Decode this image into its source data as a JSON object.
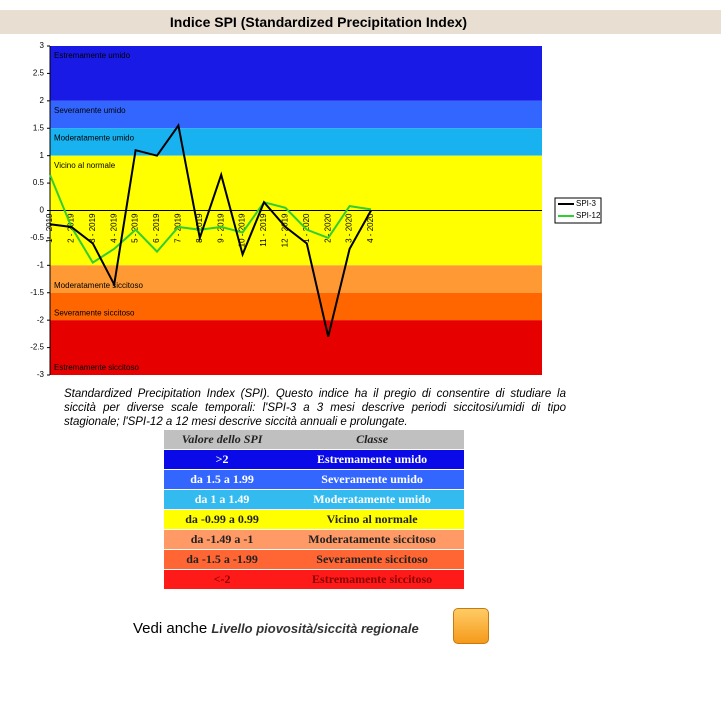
{
  "header": {
    "title": "Indice SPI (Standardized Precipitation Index)"
  },
  "chart_data": {
    "type": "line",
    "categories": [
      "1 - 2019",
      "2 - 2019",
      "3 - 2019",
      "4 - 2019",
      "5 - 2019",
      "6 - 2019",
      "7 - 2019",
      "8 - 2019",
      "9 - 2019",
      "10 - 2019",
      "11 - 2019",
      "12 - 2019",
      "1 - 2020",
      "2 - 2020",
      "3 - 2020",
      "4 - 2020"
    ],
    "series": [
      {
        "name": "SPI-3",
        "color": "#000000",
        "values": [
          -0.25,
          -0.3,
          -0.6,
          -1.35,
          1.1,
          1.0,
          1.55,
          -0.5,
          0.65,
          -0.8,
          0.15,
          -0.3,
          -0.6,
          -2.3,
          -0.7,
          0.0
        ]
      },
      {
        "name": "SPI-12",
        "color": "#33cc33",
        "values": [
          0.65,
          -0.3,
          -0.95,
          -0.7,
          -0.35,
          -0.75,
          -0.3,
          -0.35,
          -0.3,
          -0.4,
          0.15,
          0.05,
          -0.35,
          -0.5,
          0.08,
          0.02
        ]
      }
    ],
    "bands": [
      {
        "label": "Estremamente umido",
        "from": 2,
        "to": 3,
        "color": "#1a1ae6"
      },
      {
        "label": "Severamente  umido",
        "from": 1.5,
        "to": 2,
        "color": "#3366ff"
      },
      {
        "label": "Moderatamente  umido",
        "from": 1,
        "to": 1.5,
        "color": "#19b2f0"
      },
      {
        "label": "Vicino al normale",
        "from": -1,
        "to": 1,
        "color": "#ffff00"
      },
      {
        "label": "Moderatamente siccitoso",
        "from": -1.5,
        "to": -1,
        "color": "#ff9933"
      },
      {
        "label": "Severamente  siccitoso",
        "from": -2,
        "to": -1.5,
        "color": "#ff6600"
      },
      {
        "label": "Estremamente siccitoso",
        "from": -3,
        "to": -2,
        "color": "#e60000"
      }
    ],
    "ylim": [
      -3,
      3
    ],
    "yticks": [
      3,
      2.5,
      2,
      1.5,
      1,
      0.5,
      0,
      -0.5,
      -1,
      -1.5,
      -2,
      -2.5,
      -3
    ],
    "legend": "right"
  },
  "caption": "Standardized Precipitation Index (SPI). Questo indice ha il pregio di consentire di studiare la siccità per diverse scale temporali: l'SPI-3 a 3 mesi descrive periodi siccitosi/umidi di tipo stagionale; l'SPI-12 a 12 mesi descrive siccità annuali e prolungate.",
  "table": {
    "header": [
      "Valore dello SPI",
      "Classe"
    ],
    "rows": [
      [
        ">2",
        "Estremamente umido"
      ],
      [
        "da 1.5 a 1.99",
        "Severamente umido"
      ],
      [
        "da 1 a 1.49",
        "Moderatamente umido"
      ],
      [
        "da -0.99 a 0.99",
        "Vicino al normale"
      ],
      [
        "da -1.49 a -1",
        "Moderatamente siccitoso"
      ],
      [
        "da -1.5 a -1.99",
        "Severamente  siccitoso"
      ],
      [
        "<-2",
        "Estremamente siccitoso"
      ]
    ],
    "row_colors": [
      "#0a0ae8",
      "#3366ff",
      "#33bbf0",
      "#ffff00",
      "#ff9966",
      "#ff6633",
      "#ff1a1a"
    ]
  },
  "footer": {
    "text": "Vedi anche",
    "link": "Livello piovosità/siccità regionale"
  }
}
